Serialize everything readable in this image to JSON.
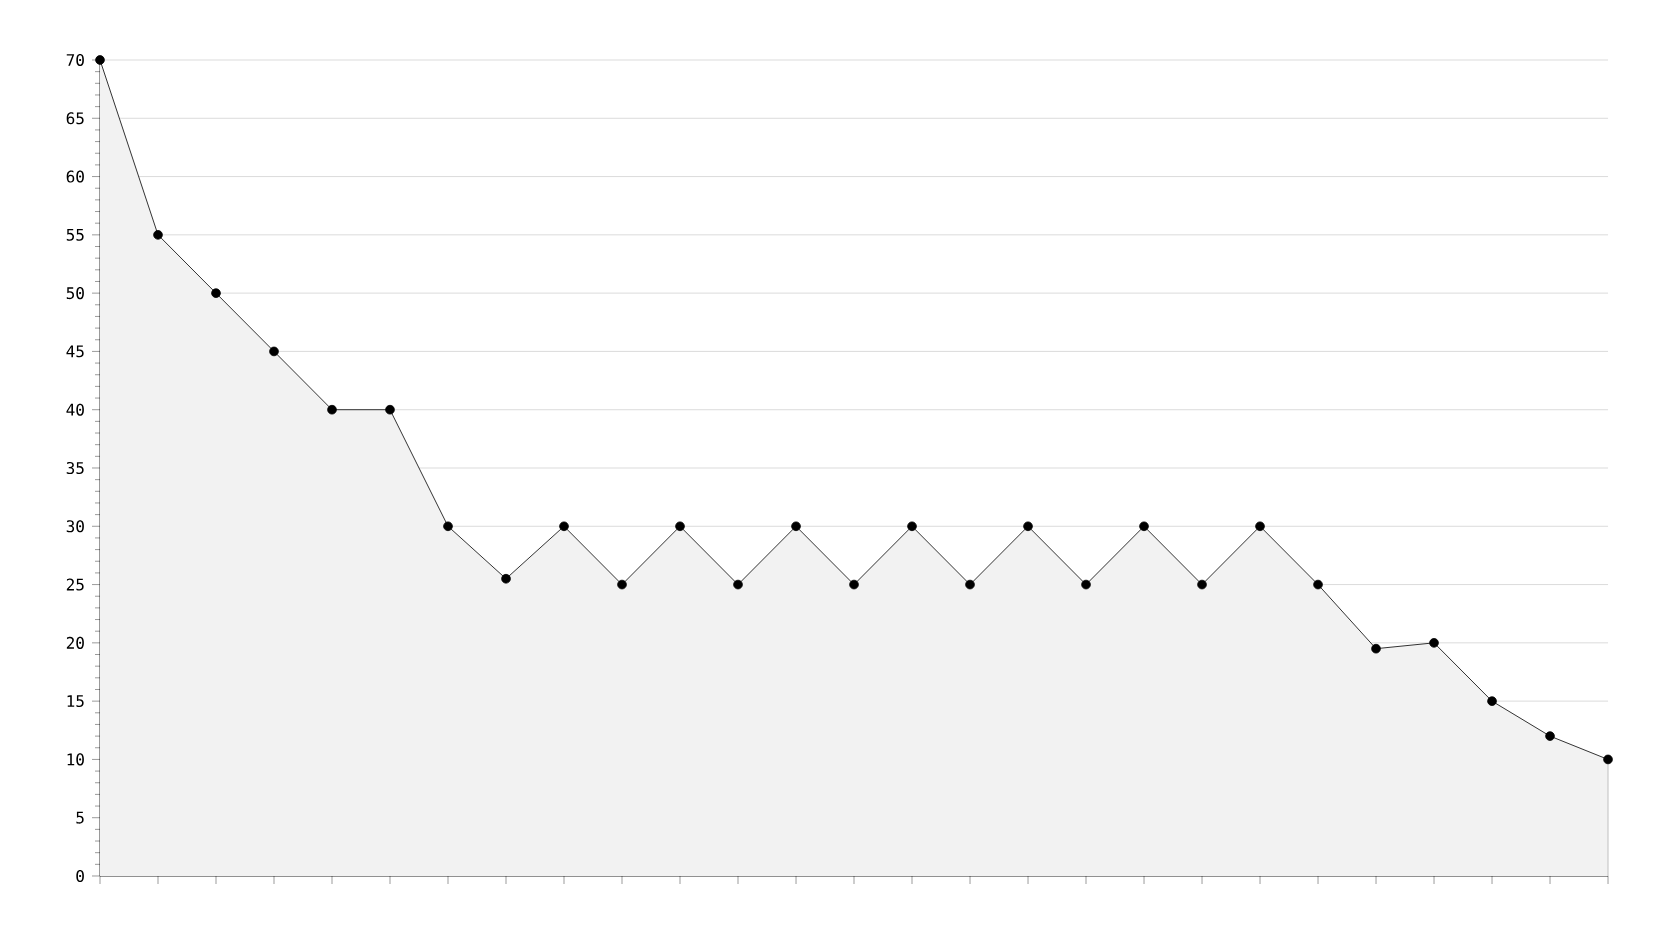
{
  "chart_data": {
    "type": "area",
    "categories": [
      null,
      null,
      null,
      null,
      null,
      null,
      null,
      null,
      null,
      null,
      null,
      null,
      null,
      null,
      null,
      null,
      null,
      null,
      null,
      null,
      null,
      null,
      null,
      null,
      null,
      null,
      null
    ],
    "values": [
      70,
      55,
      50,
      45,
      40,
      40,
      30,
      25.5,
      30,
      25,
      30,
      25,
      30,
      25,
      30,
      25,
      30,
      25,
      30,
      25,
      30,
      25,
      19.5,
      20,
      15,
      12,
      10
    ],
    "color": "#f2f2f2",
    "ylim": [
      0,
      70
    ],
    "yticks": [
      0,
      5,
      10,
      15,
      20,
      25,
      30,
      35,
      40,
      45,
      50,
      55,
      60,
      65,
      70
    ],
    "grid": "y",
    "marker": "circle",
    "line_style": "solid",
    "tick_labels": "y"
  }
}
